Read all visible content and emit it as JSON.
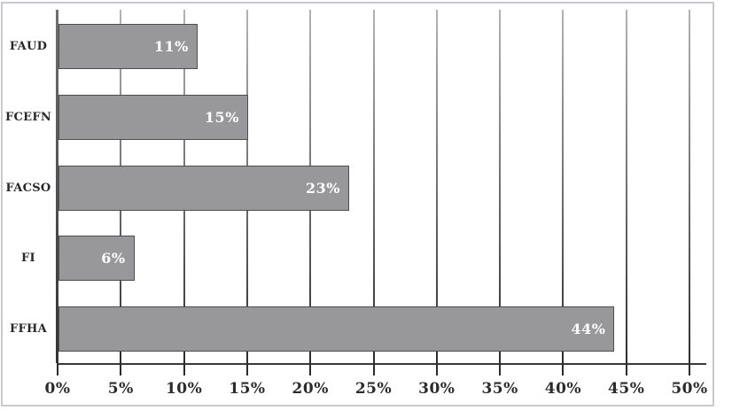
{
  "figure": {
    "background": "#ffffff",
    "frame_border_color": "#c9c9d2"
  },
  "chart_data": {
    "type": "bar",
    "orientation": "horizontal",
    "title": "",
    "xlabel": "",
    "ylabel": "",
    "categories": [
      "FAUD",
      "FCEFN",
      "FACSO",
      "FI",
      "FFHA"
    ],
    "values": [
      11,
      15,
      23,
      6,
      44
    ],
    "value_labels": [
      "11%",
      "15%",
      "23%",
      "6%",
      "44%"
    ],
    "xlim": [
      0,
      50
    ],
    "x_tick_step": 5,
    "x_ticks": [
      "0%",
      "5%",
      "10%",
      "15%",
      "20%",
      "25%",
      "30%",
      "35%",
      "40%",
      "45%",
      "50%"
    ],
    "grid": "vertical",
    "legend": "none",
    "colors": {
      "bar_fill": "#98989b",
      "bar_border": "#4d4d50",
      "value_label": "#ffffff",
      "gridline_top": "#b3b3b6",
      "gridline_bottom": "#2c2c2f",
      "axis_y_top": "#707073",
      "axis_y_bottom": "#333336",
      "axis_x": "#39393c",
      "tick": "#2b2b2e",
      "tick_label": "#2b2b2b",
      "category_label": "#28282c"
    }
  }
}
